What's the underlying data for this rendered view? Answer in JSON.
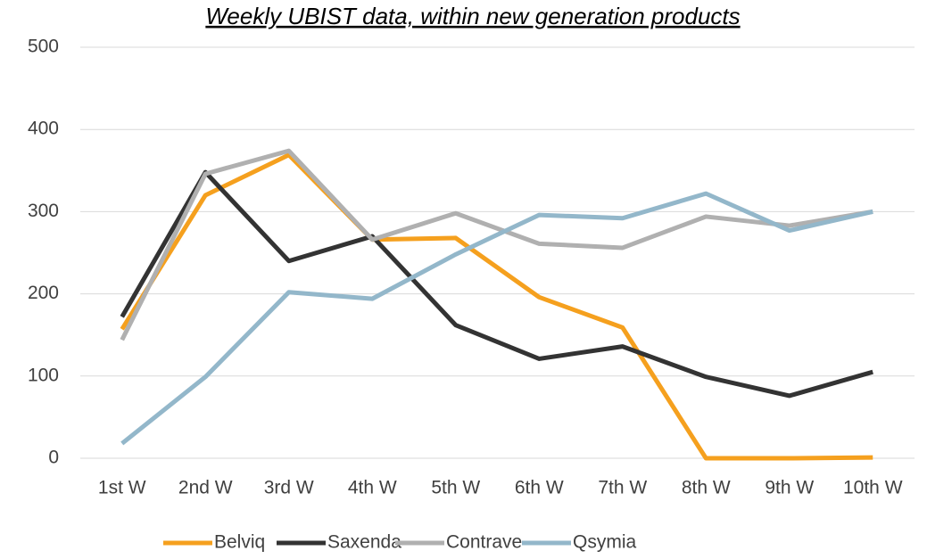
{
  "chart_data": {
    "type": "line",
    "title": "Weekly UBIST data, within new generation products",
    "categories": [
      "1st W",
      "2nd W",
      "3rd W",
      "4th W",
      "5th W",
      "6th W",
      "7th W",
      "8th W",
      "9th W",
      "10th W"
    ],
    "series": [
      {
        "name": "Belviq",
        "color": "#f5a01e",
        "values": [
          157,
          320,
          369,
          266,
          268,
          196,
          159,
          0,
          0,
          1
        ]
      },
      {
        "name": "Saxenda",
        "color": "#333333",
        "values": [
          172,
          348,
          240,
          270,
          162,
          121,
          136,
          99,
          76,
          105
        ]
      },
      {
        "name": "Contrave",
        "color": "#b0b0b0",
        "values": [
          144,
          346,
          374,
          266,
          298,
          261,
          256,
          294,
          283,
          300
        ]
      },
      {
        "name": "Qsymia",
        "color": "#93b7ca",
        "values": [
          18,
          99,
          202,
          194,
          248,
          296,
          292,
          322,
          277,
          300
        ]
      }
    ],
    "ylim": [
      0,
      500
    ],
    "yticks": [
      0,
      100,
      200,
      300,
      400,
      500
    ],
    "grid": true,
    "legend": "bottom"
  }
}
